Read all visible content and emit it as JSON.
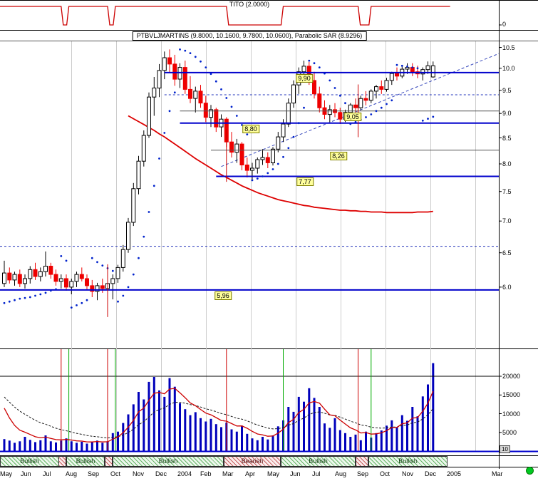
{
  "top_panel": {
    "title": "TITO (2.0000)",
    "axis_label": "0",
    "line_color": "#cc0000"
  },
  "main_panel": {
    "title": "PTBVLJMARTINS (9.8000, 10.1600, 9.7800, 10.0600), Parabolic SAR (8.9296)"
  },
  "footer": {
    "multiplier": "10"
  },
  "chart_data": {
    "type": "candlestick",
    "title": "PTBVLJMARTINS (9.8000, 10.1600, 9.7800, 10.0600), Parabolic SAR (8.9296)",
    "down_color": "#ee0000",
    "up_color": "#000000",
    "price_axis": {
      "scale": "log",
      "ticks": [
        {
          "v": 10.5,
          "label": "10.5"
        },
        {
          "v": 10.0,
          "label": "10.0"
        },
        {
          "v": 9.5,
          "label": "9.5"
        },
        {
          "v": 9.0,
          "label": "9.0"
        },
        {
          "v": 8.5,
          "label": "8.5"
        },
        {
          "v": 8.0,
          "label": "8.0"
        },
        {
          "v": 7.5,
          "label": "7.5"
        },
        {
          "v": 7.0,
          "label": "7.0"
        },
        {
          "v": 6.5,
          "label": "6.5"
        },
        {
          "v": 6.0,
          "label": "6.0"
        }
      ]
    },
    "x_labels": [
      {
        "m": 0,
        "t": "May"
      },
      {
        "m": 1,
        "t": "Jun"
      },
      {
        "m": 2,
        "t": "Jul"
      },
      {
        "m": 3,
        "t": "Aug"
      },
      {
        "m": 4,
        "t": "Sep"
      },
      {
        "m": 5,
        "t": "Oct"
      },
      {
        "m": 6,
        "t": "Nov"
      },
      {
        "m": 7,
        "t": "Dec"
      },
      {
        "m": 8,
        "t": "2004"
      },
      {
        "m": 9,
        "t": "Feb"
      },
      {
        "m": 10,
        "t": "Mar"
      },
      {
        "m": 11,
        "t": "Apr"
      },
      {
        "m": 12,
        "t": "May"
      },
      {
        "m": 13,
        "t": "Jun"
      },
      {
        "m": 14,
        "t": "Jul"
      },
      {
        "m": 15,
        "t": "Aug"
      },
      {
        "m": 16,
        "t": "Sep"
      },
      {
        "m": 17,
        "t": "Oct"
      },
      {
        "m": 18,
        "t": "Nov"
      },
      {
        "m": 19,
        "t": "Dec"
      },
      {
        "m": 20,
        "t": "2005"
      },
      {
        "m": 22,
        "t": "Mar"
      }
    ],
    "candles": [
      [
        6.05,
        6.38,
        6.0,
        6.2
      ],
      [
        6.2,
        6.28,
        6.05,
        6.1
      ],
      [
        6.1,
        6.22,
        6.02,
        6.18
      ],
      [
        6.18,
        6.25,
        6.0,
        6.05
      ],
      [
        6.05,
        6.18,
        5.98,
        6.12
      ],
      [
        6.12,
        6.3,
        6.05,
        6.25
      ],
      [
        6.25,
        6.35,
        6.1,
        6.15
      ],
      [
        6.15,
        6.28,
        6.08,
        6.22
      ],
      [
        6.22,
        6.52,
        6.15,
        6.3
      ],
      [
        6.3,
        6.35,
        6.12,
        6.18
      ],
      [
        6.18,
        6.25,
        6.02,
        6.08
      ],
      [
        6.08,
        6.18,
        5.98,
        6.12
      ],
      [
        6.12,
        6.18,
        5.95,
        6.0
      ],
      [
        6.0,
        6.12,
        5.9,
        6.08
      ],
      [
        6.08,
        6.22,
        6.0,
        6.18
      ],
      [
        6.18,
        6.28,
        6.08,
        6.12
      ],
      [
        6.12,
        6.18,
        5.96,
        6.02
      ],
      [
        6.02,
        6.1,
        5.86,
        5.94
      ],
      [
        5.94,
        6.06,
        5.82,
        6.02
      ],
      [
        6.02,
        6.12,
        5.92,
        5.98
      ],
      [
        5.98,
        6.08,
        5.88,
        6.05
      ],
      [
        6.05,
        6.18,
        5.83,
        6.12
      ],
      [
        6.12,
        6.32,
        6.06,
        6.28
      ],
      [
        6.28,
        6.62,
        6.22,
        6.55
      ],
      [
        6.55,
        7.05,
        6.5,
        6.98
      ],
      [
        6.98,
        7.65,
        6.92,
        7.55
      ],
      [
        7.55,
        8.15,
        7.45,
        8.05
      ],
      [
        8.05,
        8.65,
        7.95,
        8.55
      ],
      [
        8.55,
        9.45,
        8.5,
        9.35
      ],
      [
        9.35,
        9.8,
        8.95,
        9.55
      ],
      [
        9.55,
        10.1,
        9.35,
        9.95
      ],
      [
        9.95,
        10.4,
        9.75,
        10.25
      ],
      [
        10.25,
        10.45,
        9.9,
        10.1
      ],
      [
        10.1,
        10.32,
        9.6,
        9.75
      ],
      [
        9.75,
        10.12,
        9.55,
        10.02
      ],
      [
        10.02,
        10.18,
        9.42,
        9.52
      ],
      [
        9.52,
        9.82,
        9.22,
        9.32
      ],
      [
        9.32,
        9.58,
        9.02,
        9.48
      ],
      [
        9.48,
        9.62,
        9.12,
        9.22
      ],
      [
        9.22,
        9.38,
        8.82,
        8.92
      ],
      [
        8.92,
        9.18,
        8.72,
        9.08
      ],
      [
        9.08,
        9.12,
        8.62,
        8.72
      ],
      [
        8.72,
        8.98,
        8.52,
        8.88
      ],
      [
        8.88,
        8.92,
        8.32,
        8.42
      ],
      [
        8.42,
        8.62,
        8.12,
        8.22
      ],
      [
        8.22,
        8.48,
        8.02,
        8.38
      ],
      [
        8.38,
        8.42,
        7.88,
        7.98
      ],
      [
        7.98,
        8.12,
        7.75,
        7.88
      ],
      [
        7.88,
        8.02,
        7.72,
        7.92
      ],
      [
        7.92,
        8.12,
        7.82,
        8.08
      ],
      [
        8.08,
        8.28,
        7.98,
        8.12
      ],
      [
        8.12,
        8.22,
        7.92,
        8.02
      ],
      [
        8.02,
        8.32,
        7.97,
        8.28
      ],
      [
        8.28,
        8.62,
        8.22,
        8.52
      ],
      [
        8.52,
        8.88,
        8.42,
        8.78
      ],
      [
        8.78,
        9.32,
        8.72,
        9.22
      ],
      [
        9.22,
        9.72,
        9.12,
        9.62
      ],
      [
        9.62,
        10.02,
        9.42,
        9.92
      ],
      [
        9.92,
        10.18,
        9.77,
        10.05
      ],
      [
        10.05,
        10.15,
        9.62,
        9.72
      ],
      [
        9.72,
        9.92,
        9.32,
        9.42
      ],
      [
        9.42,
        9.58,
        9.02,
        9.12
      ],
      [
        9.12,
        9.28,
        8.88,
        8.98
      ],
      [
        8.98,
        9.18,
        8.82,
        9.08
      ],
      [
        9.08,
        9.22,
        8.92,
        9.02
      ],
      [
        9.02,
        9.12,
        8.78,
        8.88
      ],
      [
        8.88,
        9.08,
        8.82,
        9.02
      ],
      [
        9.02,
        9.22,
        8.92,
        9.18
      ],
      [
        9.18,
        9.32,
        9.02,
        9.12
      ],
      [
        9.12,
        9.38,
        9.07,
        9.32
      ],
      [
        9.32,
        9.48,
        9.17,
        9.28
      ],
      [
        9.28,
        9.52,
        9.22,
        9.48
      ],
      [
        9.48,
        9.62,
        9.32,
        9.58
      ],
      [
        9.58,
        9.72,
        9.42,
        9.52
      ],
      [
        9.52,
        9.78,
        9.47,
        9.72
      ],
      [
        9.72,
        9.92,
        9.62,
        9.88
      ],
      [
        9.88,
        10.02,
        9.72,
        9.82
      ],
      [
        9.82,
        10.08,
        9.77,
        9.98
      ],
      [
        9.98,
        10.12,
        9.87,
        10.02
      ],
      [
        10.02,
        10.12,
        9.82,
        9.92
      ],
      [
        9.92,
        10.06,
        9.77,
        9.87
      ],
      [
        9.87,
        10.02,
        9.72,
        9.97
      ],
      [
        9.97,
        10.16,
        9.87,
        10.06
      ],
      [
        9.8,
        10.16,
        9.78,
        10.06
      ]
    ],
    "parabolic_sar": {
      "color": "#0022cc",
      "last_value": 8.9296,
      "points": [
        [
          0,
          5.78
        ],
        [
          1,
          5.8
        ],
        [
          2,
          5.82
        ],
        [
          3,
          5.84
        ],
        [
          4,
          5.85
        ],
        [
          5,
          5.86
        ],
        [
          6,
          5.88
        ],
        [
          7,
          5.9
        ],
        [
          8,
          5.92
        ],
        [
          9,
          5.95
        ],
        [
          10,
          5.97
        ],
        [
          11,
          6.45
        ],
        [
          12,
          6.38
        ],
        [
          13,
          5.72
        ],
        [
          14,
          5.75
        ],
        [
          15,
          5.78
        ],
        [
          16,
          5.82
        ],
        [
          17,
          6.42
        ],
        [
          18,
          6.36
        ],
        [
          19,
          6.31
        ],
        [
          20,
          6.27
        ],
        [
          21,
          6.23
        ],
        [
          22,
          5.8
        ],
        [
          23,
          5.88
        ],
        [
          24,
          6.0
        ],
        [
          25,
          6.18
        ],
        [
          26,
          6.42
        ],
        [
          27,
          6.75
        ],
        [
          28,
          7.15
        ],
        [
          29,
          7.6
        ],
        [
          30,
          8.1
        ],
        [
          31,
          8.6
        ],
        [
          32,
          9.05
        ],
        [
          33,
          9.45
        ],
        [
          34,
          10.45
        ],
        [
          35,
          10.42
        ],
        [
          36,
          10.36
        ],
        [
          37,
          10.27
        ],
        [
          38,
          10.16
        ],
        [
          39,
          10.02
        ],
        [
          40,
          9.87
        ],
        [
          41,
          9.7
        ],
        [
          42,
          9.52
        ],
        [
          43,
          9.33
        ],
        [
          44,
          9.14
        ],
        [
          45,
          8.95
        ],
        [
          46,
          8.76
        ],
        [
          47,
          8.57
        ],
        [
          48,
          7.7
        ],
        [
          49,
          7.73
        ],
        [
          50,
          7.77
        ],
        [
          51,
          7.83
        ],
        [
          52,
          7.9
        ],
        [
          53,
          8.0
        ],
        [
          54,
          8.13
        ],
        [
          55,
          8.3
        ],
        [
          56,
          8.52
        ],
        [
          57,
          8.8
        ],
        [
          58,
          9.12
        ],
        [
          59,
          10.18
        ],
        [
          60,
          10.12
        ],
        [
          61,
          10.02
        ],
        [
          62,
          9.88
        ],
        [
          63,
          9.72
        ],
        [
          64,
          9.55
        ],
        [
          65,
          9.38
        ],
        [
          66,
          9.22
        ],
        [
          67,
          8.78
        ],
        [
          68,
          8.82
        ],
        [
          69,
          8.87
        ],
        [
          70,
          8.92
        ],
        [
          71,
          8.98
        ],
        [
          72,
          9.05
        ],
        [
          73,
          9.12
        ],
        [
          74,
          9.2
        ],
        [
          75,
          9.28
        ],
        [
          76,
          10.08
        ],
        [
          77,
          10.06
        ],
        [
          78,
          10.04
        ],
        [
          79,
          10.02
        ],
        [
          80,
          10.0
        ],
        [
          81,
          8.85
        ],
        [
          82,
          8.89
        ],
        [
          83,
          8.93
        ]
      ]
    },
    "moving_average": {
      "color": "#dd0000",
      "start_index": 24,
      "values": [
        8.95,
        8.89,
        8.83,
        8.77,
        8.71,
        8.65,
        8.58,
        8.52,
        8.45,
        8.38,
        8.31,
        8.24,
        8.17,
        8.1,
        8.04,
        7.98,
        7.92,
        7.86,
        7.8,
        7.75,
        7.7,
        7.65,
        7.6,
        7.56,
        7.52,
        7.48,
        7.45,
        7.42,
        7.39,
        7.36,
        7.34,
        7.32,
        7.3,
        7.28,
        7.26,
        7.25,
        7.23,
        7.22,
        7.21,
        7.2,
        7.19,
        7.18,
        7.18,
        7.17,
        7.17,
        7.16,
        7.16,
        7.15,
        7.15,
        7.15,
        7.14,
        7.14,
        7.14,
        7.14,
        7.14,
        7.14,
        7.15,
        7.15,
        7.15,
        7.16
      ]
    },
    "hlines": [
      {
        "value": 9.9,
        "label": "9,90",
        "from_i": 31,
        "label_i": 58,
        "style": "thick"
      },
      {
        "value": 9.05,
        "label": "9,05",
        "from_i": 34,
        "label_i": 67.5,
        "style": "thin"
      },
      {
        "value": 8.8,
        "label": "8,80",
        "from_i": 34,
        "label_i": 47.7,
        "style": "thick"
      },
      {
        "value": 8.26,
        "label": "8,26",
        "from_i": 40,
        "label_i": 64.7,
        "style": "thin"
      },
      {
        "value": 7.77,
        "label": "7,77",
        "from_i": 41,
        "label_i": 58.2,
        "style": "thick"
      },
      {
        "value": 5.96,
        "label": "5,96",
        "from_i": 0,
        "label_i": 42.3,
        "style": "thick"
      }
    ],
    "dashed_hlines": [
      {
        "value": 9.4,
        "from_i": 31
      },
      {
        "value": 6.6,
        "from_i": 0
      }
    ],
    "trendline": {
      "from_i": 42,
      "from_price": 7.95,
      "to_price": 10.35
    },
    "signals": [
      {
        "i": 11,
        "color": "red"
      },
      {
        "i": 12.5,
        "color": "green"
      },
      {
        "i": 20,
        "color": "red",
        "main": true,
        "p": 5.98
      },
      {
        "i": 21.5,
        "color": "green"
      },
      {
        "i": 43,
        "color": "red",
        "main": true,
        "p": 8.2
      },
      {
        "i": 54,
        "color": "green"
      },
      {
        "i": 68.5,
        "color": "red",
        "main": true,
        "p": 9.1
      },
      {
        "i": 71,
        "color": "green"
      }
    ],
    "volume": {
      "bar_color": "#0000bb",
      "threshold": 20000,
      "ticks": [
        {
          "v": 20000,
          "label": "20000"
        },
        {
          "v": 15000,
          "label": "15000"
        },
        {
          "v": 10000,
          "label": "10000"
        },
        {
          "v": 5000,
          "label": "5000"
        }
      ],
      "ma_fast": {
        "color": "#cc0000",
        "alpha": 0.3,
        "seed": 15000
      },
      "ma_slow": {
        "color": "#181818",
        "alpha": 0.12,
        "seed": 16000
      },
      "values": [
        3200,
        2800,
        2200,
        2600,
        3800,
        3000,
        2400,
        2900,
        4200,
        2600,
        2300,
        2800,
        3400,
        2600,
        2200,
        2500,
        2000,
        2400,
        2800,
        2200,
        2600,
        4800,
        5200,
        7500,
        9800,
        12500,
        15800,
        13800,
        18500,
        19800,
        16200,
        14500,
        19500,
        17200,
        12800,
        11200,
        9600,
        10400,
        8800,
        7900,
        8600,
        7200,
        6400,
        7600,
        5800,
        5200,
        6800,
        4600,
        3400,
        2900,
        3800,
        3100,
        4200,
        6600,
        8200,
        11800,
        10500,
        14500,
        13200,
        16800,
        14200,
        11800,
        7400,
        6200,
        8800,
        5600,
        4800,
        3800,
        4400,
        2900,
        5200,
        3600,
        4800,
        5500,
        6800,
        8200,
        6400,
        9600,
        8100,
        11800,
        9300,
        14600,
        17800,
        23500
      ]
    },
    "ribbon": {
      "segments": [
        {
          "from": -0.5,
          "to": 11,
          "type": "bullish",
          "label": "Bullish"
        },
        {
          "from": 11,
          "to": 12.5,
          "type": "bearish",
          "label": ""
        },
        {
          "from": 12.5,
          "to": 20,
          "type": "bullish",
          "label": "Bullish"
        },
        {
          "from": 20,
          "to": 21.5,
          "type": "bearish",
          "label": ""
        },
        {
          "from": 21.5,
          "to": 43,
          "type": "bullish",
          "label": "Bullish"
        },
        {
          "from": 43,
          "to": 54,
          "type": "bearish",
          "label": "Bearish"
        },
        {
          "from": 54,
          "to": 68.5,
          "type": "bullish",
          "label": "Bullish"
        },
        {
          "from": 68.5,
          "to": 71,
          "type": "bearish",
          "label": ""
        },
        {
          "from": 71,
          "to": 86.3,
          "type": "bullish",
          "label": "Bullish"
        }
      ]
    }
  }
}
